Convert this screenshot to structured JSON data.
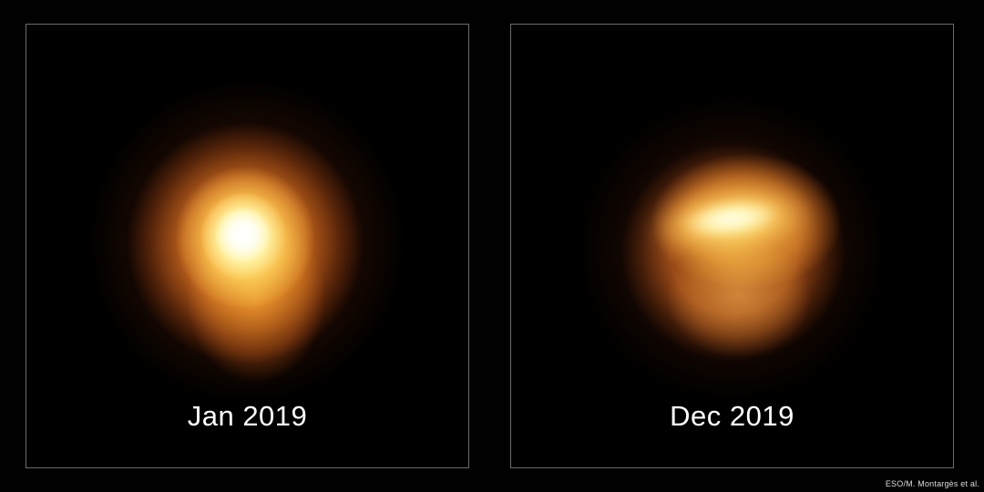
{
  "figure": {
    "credit": "ESO/M. Montargès et al."
  },
  "panels": [
    {
      "label": "Jan 2019"
    },
    {
      "label": "Dec 2019"
    }
  ],
  "colors": {
    "background": "#010101",
    "panel_border": "#6a6a6a",
    "label_text": "#ffffff",
    "credit_text": "#dddddd",
    "star_core": "#ffffff",
    "star_inner_glow": "#ffc96e",
    "star_mid_glow": "#e07f22",
    "star_outer_glow": "#5a2308",
    "dim_star_disk": "#9a4f16"
  }
}
